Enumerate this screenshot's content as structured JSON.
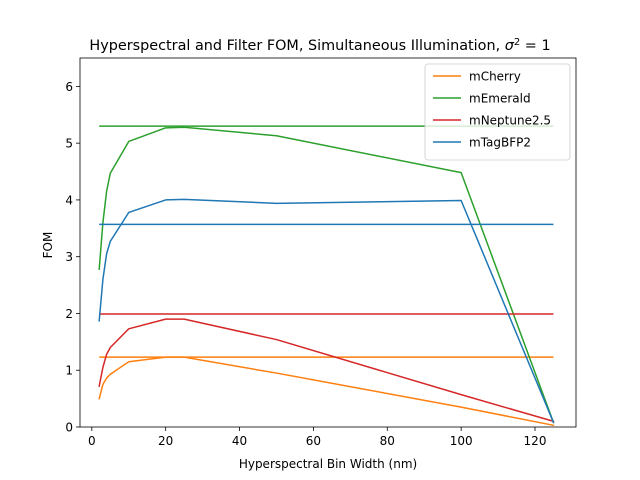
{
  "chart_data": {
    "type": "line",
    "title": "Hyperspectral and Filter FOM, Simultaneous Illumination, σ² = 1",
    "title_parts": {
      "main": "Hyperspectral and Filter FOM, Simultaneous Illumination, ",
      "sigma": "σ",
      "sup": "2",
      "tail": " = 1"
    },
    "xlabel": "Hyperspectral Bin Width (nm)",
    "ylabel": "FOM",
    "xlim": [
      -3.2,
      131.1
    ],
    "ylim": [
      0,
      6.5
    ],
    "xticks": [
      0,
      20,
      40,
      60,
      80,
      100,
      120
    ],
    "yticks": [
      0,
      1,
      2,
      3,
      4,
      5,
      6
    ],
    "grid": false,
    "legend_position": "top-right",
    "series": [
      {
        "name": "mCherry",
        "color": "#ff7f0e",
        "x": [
          2,
          3,
          4,
          5,
          10,
          20,
          25,
          50,
          100,
          125
        ],
        "y": [
          0.5,
          0.75,
          0.86,
          0.93,
          1.15,
          1.23,
          1.23,
          0.95,
          0.35,
          0.03
        ],
        "filter_level": 1.23,
        "filter_x": [
          2,
          125
        ]
      },
      {
        "name": "mEmerald",
        "color": "#2ca02c",
        "x": [
          2,
          3,
          4,
          5,
          10,
          20,
          25,
          50,
          100,
          125
        ],
        "y": [
          2.78,
          3.6,
          4.15,
          4.47,
          5.03,
          5.27,
          5.28,
          5.13,
          4.48,
          0.08
        ],
        "filter_level": 5.3,
        "filter_x": [
          2,
          125
        ]
      },
      {
        "name": "mNeptune2.5",
        "color": "#d62728",
        "x": [
          2,
          3,
          4,
          5,
          10,
          20,
          25,
          50,
          100,
          125
        ],
        "y": [
          0.72,
          1.05,
          1.28,
          1.4,
          1.73,
          1.9,
          1.9,
          1.54,
          0.57,
          0.1
        ],
        "filter_level": 1.99,
        "filter_x": [
          2,
          125
        ]
      },
      {
        "name": "mTagBFP2",
        "color": "#1f77b4",
        "x": [
          2,
          3,
          4,
          5,
          10,
          20,
          25,
          50,
          100,
          125
        ],
        "y": [
          1.87,
          2.6,
          3.05,
          3.27,
          3.78,
          4.0,
          4.01,
          3.94,
          3.99,
          0.08
        ],
        "filter_level": 3.57,
        "filter_x": [
          2,
          125
        ]
      }
    ]
  }
}
